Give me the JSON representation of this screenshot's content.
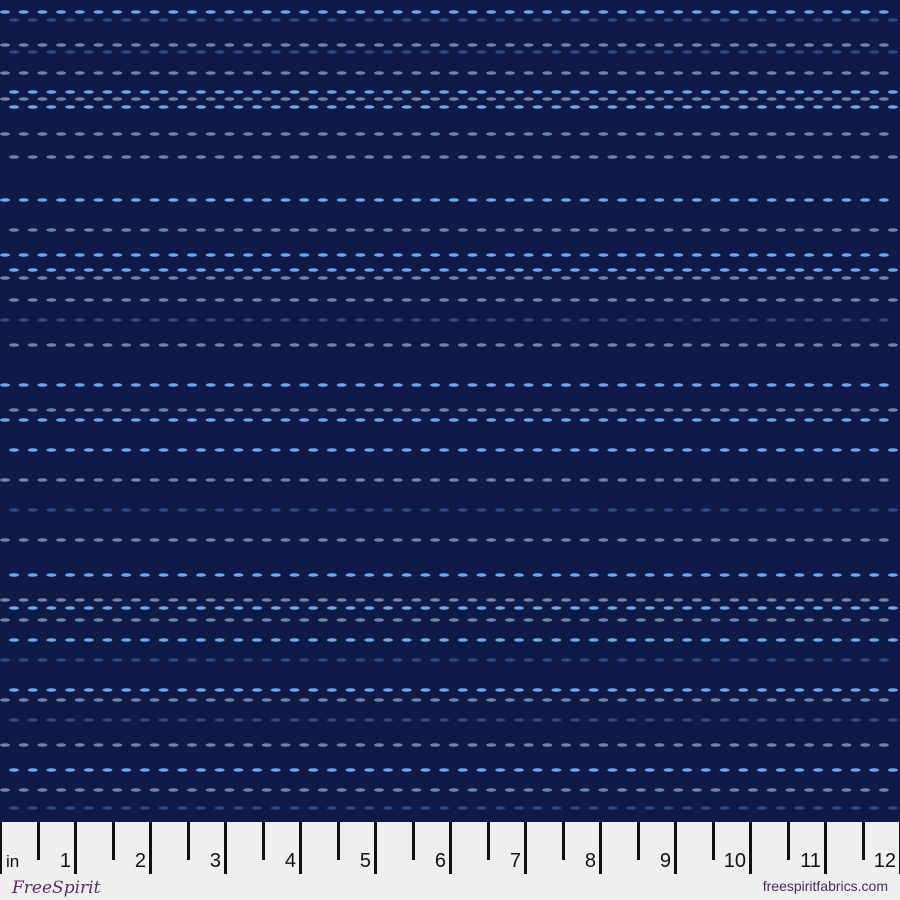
{
  "fabric": {
    "background": "#0f1a48",
    "dot_colors": [
      "#6aa8f0",
      "#6b86a8",
      "#2e4a86",
      "#8ab6e8"
    ]
  },
  "ruler": {
    "unit": "in",
    "labels": [
      "1",
      "2",
      "3",
      "4",
      "5",
      "6",
      "7",
      "8",
      "9",
      "10",
      "11",
      "12"
    ]
  },
  "brand": {
    "logo_text": "FreeSpirit",
    "url": "freespiritfabrics.com"
  }
}
